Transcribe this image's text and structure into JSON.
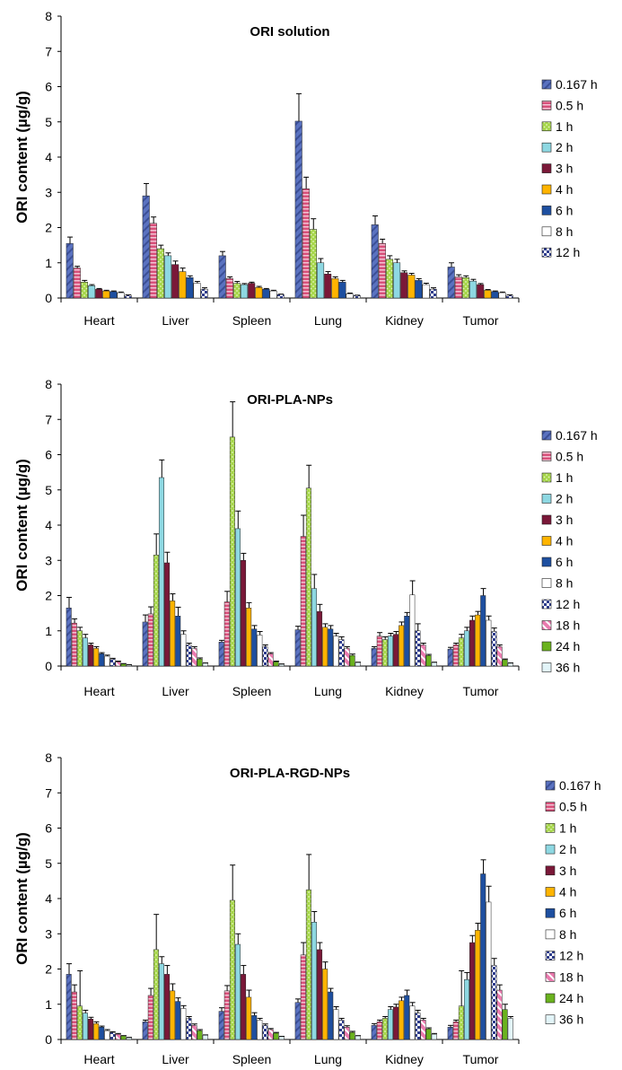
{
  "colors": {
    "0.167 h": "#5a72c0",
    "0.5 h": "#d8507a",
    "1 h": "#a6d64a",
    "2 h": "#8ed8e2",
    "3 h": "#7a1838",
    "4 h": "#ffb400",
    "6 h": "#1e4fa0",
    "8 h": "#ffffff",
    "12 h": "#2e3c8c",
    "18 h": "#ea7aae",
    "24 h": "#6ab21e",
    "36 h": "#e2f4f8"
  },
  "chart_data": [
    {
      "type": "bar",
      "title": "ORI solution",
      "ylabel": "ORI content (µg/g)",
      "ylim": [
        0,
        8
      ],
      "yticks": [
        "0",
        "1",
        "2",
        "3",
        "4",
        "5",
        "6",
        "7",
        "8"
      ],
      "categories": [
        "Heart",
        "Liver",
        "Spleen",
        "Lung",
        "Kidney",
        "Tumor"
      ],
      "legend_position": "right",
      "series": [
        {
          "name": "0.167 h",
          "values": [
            1.55,
            2.9,
            1.2,
            5.02,
            2.08,
            0.88
          ],
          "errors": [
            0.18,
            0.35,
            0.12,
            0.78,
            0.25,
            0.12
          ]
        },
        {
          "name": "0.5 h",
          "values": [
            0.85,
            2.12,
            0.55,
            3.1,
            1.55,
            0.6
          ],
          "errors": [
            0.05,
            0.18,
            0.05,
            0.33,
            0.12,
            0.06
          ]
        },
        {
          "name": "1 h",
          "values": [
            0.45,
            1.4,
            0.42,
            1.95,
            1.1,
            0.58
          ],
          "errors": [
            0.05,
            0.1,
            0.05,
            0.3,
            0.1,
            0.05
          ]
        },
        {
          "name": "2 h",
          "values": [
            0.35,
            1.2,
            0.38,
            1.0,
            1.0,
            0.48
          ],
          "errors": [
            0.03,
            0.08,
            0.03,
            0.12,
            0.1,
            0.05
          ]
        },
        {
          "name": "3 h",
          "values": [
            0.25,
            0.95,
            0.42,
            0.68,
            0.72,
            0.38
          ],
          "errors": [
            0.02,
            0.1,
            0.03,
            0.07,
            0.05,
            0.03
          ]
        },
        {
          "name": "4 h",
          "values": [
            0.2,
            0.75,
            0.3,
            0.55,
            0.65,
            0.22
          ],
          "errors": [
            0.02,
            0.1,
            0.03,
            0.05,
            0.05,
            0.02
          ]
        },
        {
          "name": "6 h",
          "values": [
            0.18,
            0.58,
            0.25,
            0.45,
            0.5,
            0.18
          ],
          "errors": [
            0.02,
            0.05,
            0.02,
            0.05,
            0.05,
            0.02
          ]
        },
        {
          "name": "8 h",
          "values": [
            0.15,
            0.42,
            0.2,
            0.12,
            0.38,
            0.15
          ],
          "errors": [
            0.02,
            0.05,
            0.02,
            0.02,
            0.04,
            0.02
          ]
        },
        {
          "name": "12 h",
          "values": [
            0.08,
            0.25,
            0.1,
            0.07,
            0.25,
            0.08
          ],
          "errors": [
            0.01,
            0.04,
            0.01,
            0.01,
            0.04,
            0.01
          ]
        }
      ]
    },
    {
      "type": "bar",
      "title": "ORI-PLA-NPs",
      "ylabel": "ORI content (µg/g)",
      "ylim": [
        0,
        8
      ],
      "yticks": [
        "0",
        "1",
        "2",
        "3",
        "4",
        "5",
        "6",
        "7",
        "8"
      ],
      "categories": [
        "Heart",
        "Liver",
        "Spleen",
        "Lung",
        "Kidney",
        "Tumor"
      ],
      "legend_position": "right",
      "series": [
        {
          "name": "0.167 h",
          "values": [
            1.65,
            1.25,
            0.68,
            1.03,
            0.5,
            0.48
          ],
          "errors": [
            0.3,
            0.2,
            0.05,
            0.1,
            0.05,
            0.05
          ]
        },
        {
          "name": "0.5 h",
          "values": [
            1.22,
            1.48,
            1.82,
            3.68,
            0.85,
            0.6
          ],
          "errors": [
            0.12,
            0.2,
            0.3,
            0.6,
            0.1,
            0.05
          ]
        },
        {
          "name": "1 h",
          "values": [
            1.0,
            3.15,
            6.5,
            5.05,
            0.75,
            0.8
          ],
          "errors": [
            0.1,
            0.6,
            1.0,
            0.65,
            0.08,
            0.1
          ]
        },
        {
          "name": "2 h",
          "values": [
            0.8,
            5.35,
            3.9,
            2.2,
            0.85,
            1.0
          ],
          "errors": [
            0.1,
            0.5,
            0.5,
            0.4,
            0.08,
            0.1
          ]
        },
        {
          "name": "3 h",
          "values": [
            0.6,
            2.93,
            3.0,
            1.55,
            0.9,
            1.3
          ],
          "errors": [
            0.05,
            0.3,
            0.2,
            0.2,
            0.08,
            0.12
          ]
        },
        {
          "name": "4 h",
          "values": [
            0.5,
            1.85,
            1.65,
            1.1,
            1.15,
            1.45
          ],
          "errors": [
            0.05,
            0.2,
            0.15,
            0.1,
            0.1,
            0.1
          ]
        },
        {
          "name": "6 h",
          "values": [
            0.35,
            1.42,
            1.05,
            1.05,
            1.42,
            2.0
          ],
          "errors": [
            0.03,
            0.25,
            0.1,
            0.1,
            0.1,
            0.2
          ]
        },
        {
          "name": "8 h",
          "values": [
            0.28,
            0.9,
            0.88,
            0.85,
            2.02,
            1.3
          ],
          "errors": [
            0.03,
            0.1,
            0.1,
            0.08,
            0.4,
            0.12
          ]
        },
        {
          "name": "12 h",
          "values": [
            0.2,
            0.6,
            0.55,
            0.75,
            1.0,
            0.98
          ],
          "errors": [
            0.02,
            0.05,
            0.05,
            0.08,
            0.2,
            0.1
          ]
        },
        {
          "name": "18 h",
          "values": [
            0.12,
            0.5,
            0.35,
            0.5,
            0.6,
            0.55
          ],
          "errors": [
            0.02,
            0.05,
            0.03,
            0.05,
            0.05,
            0.05
          ]
        },
        {
          "name": "24 h",
          "values": [
            0.06,
            0.2,
            0.12,
            0.3,
            0.3,
            0.18
          ],
          "errors": [
            0.01,
            0.03,
            0.02,
            0.04,
            0.03,
            0.02
          ]
        },
        {
          "name": "36 h",
          "values": [
            0.03,
            0.08,
            0.05,
            0.1,
            0.1,
            0.08
          ],
          "errors": [
            0.01,
            0.01,
            0.01,
            0.01,
            0.01,
            0.01
          ]
        }
      ]
    },
    {
      "type": "bar",
      "title": "ORI-PLA-RGD-NPs",
      "ylabel": "ORI content (µg/g)",
      "ylim": [
        0,
        8
      ],
      "yticks": [
        "0",
        "1",
        "2",
        "3",
        "4",
        "5",
        "6",
        "7",
        "8"
      ],
      "categories": [
        "Heart",
        "Liver",
        "Spleen",
        "Lung",
        "Kidney",
        "Tumor"
      ],
      "legend_position": "right",
      "series": [
        {
          "name": "0.167 h",
          "values": [
            1.85,
            0.5,
            0.8,
            1.05,
            0.4,
            0.35
          ],
          "errors": [
            0.3,
            0.05,
            0.1,
            0.1,
            0.05,
            0.05
          ]
        },
        {
          "name": "0.5 h",
          "values": [
            1.35,
            1.25,
            1.38,
            2.4,
            0.5,
            0.5
          ],
          "errors": [
            0.2,
            0.2,
            0.15,
            0.35,
            0.05,
            0.05
          ]
        },
        {
          "name": "1 h",
          "values": [
            0.95,
            2.55,
            3.95,
            4.25,
            0.6,
            0.95
          ],
          "errors": [
            1.0,
            1.0,
            1.0,
            1.0,
            0.05,
            1.0
          ]
        },
        {
          "name": "2 h",
          "values": [
            0.75,
            2.15,
            2.7,
            3.33,
            0.85,
            1.7
          ],
          "errors": [
            0.08,
            0.2,
            0.3,
            0.3,
            0.08,
            0.2
          ]
        },
        {
          "name": "3 h",
          "values": [
            0.58,
            1.85,
            1.85,
            2.55,
            0.92,
            2.75
          ],
          "errors": [
            0.05,
            0.25,
            0.25,
            0.2,
            0.08,
            0.2
          ]
        },
        {
          "name": "4 h",
          "values": [
            0.45,
            1.38,
            1.2,
            2.0,
            1.1,
            3.1
          ],
          "errors": [
            0.05,
            0.2,
            0.2,
            0.2,
            0.1,
            0.2
          ]
        },
        {
          "name": "6 h",
          "values": [
            0.35,
            1.08,
            0.68,
            1.35,
            1.25,
            4.7
          ],
          "errors": [
            0.03,
            0.1,
            0.08,
            0.1,
            0.15,
            0.4
          ]
        },
        {
          "name": "8 h",
          "values": [
            0.25,
            0.88,
            0.55,
            0.85,
            0.95,
            3.9
          ],
          "errors": [
            0.03,
            0.08,
            0.05,
            0.08,
            0.1,
            0.45
          ]
        },
        {
          "name": "12 h",
          "values": [
            0.2,
            0.6,
            0.4,
            0.55,
            0.75,
            2.1
          ],
          "errors": [
            0.02,
            0.05,
            0.04,
            0.05,
            0.08,
            0.2
          ]
        },
        {
          "name": "18 h",
          "values": [
            0.15,
            0.4,
            0.28,
            0.35,
            0.55,
            1.4
          ],
          "errors": [
            0.02,
            0.04,
            0.03,
            0.04,
            0.05,
            0.15
          ]
        },
        {
          "name": "24 h",
          "values": [
            0.1,
            0.25,
            0.18,
            0.2,
            0.3,
            0.85
          ],
          "errors": [
            0.01,
            0.03,
            0.02,
            0.03,
            0.03,
            0.15
          ]
        },
        {
          "name": "36 h",
          "values": [
            0.05,
            0.12,
            0.08,
            0.1,
            0.15,
            0.6
          ],
          "errors": [
            0.01,
            0.01,
            0.01,
            0.01,
            0.02,
            0.05
          ]
        }
      ]
    }
  ]
}
